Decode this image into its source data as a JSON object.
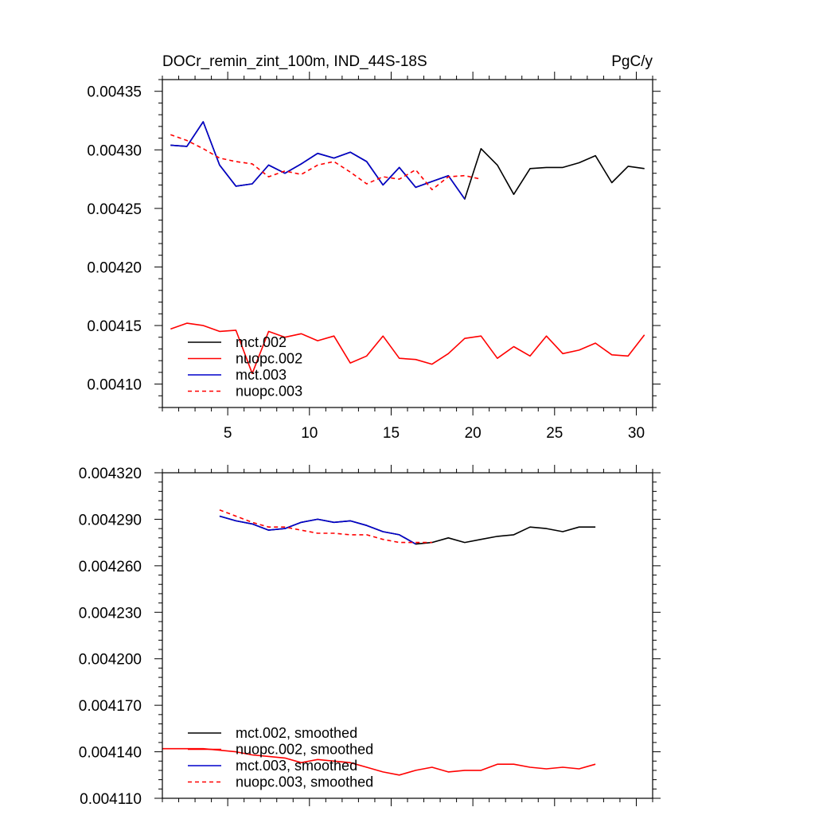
{
  "chart_data": [
    {
      "type": "line",
      "title": "DOCr_remin_zint_100m, IND_44S-18S",
      "units": "PgC/y",
      "xlim": [
        1,
        31
      ],
      "ylim": [
        0.00408,
        0.00436
      ],
      "x_ticks": [
        5,
        10,
        15,
        20,
        25,
        30
      ],
      "x_tick_labels": [
        "5",
        "10",
        "15",
        "20",
        "25",
        "30"
      ],
      "y_ticks": [
        0.0041,
        0.00415,
        0.0042,
        0.00425,
        0.0043,
        0.00435
      ],
      "y_tick_labels": [
        "0.00410",
        "0.00415",
        "0.00420",
        "0.00425",
        "0.00430",
        "0.00435"
      ],
      "legend_position": "bottom-left",
      "series": [
        {
          "name": "mct.002",
          "color": "#000000",
          "dash": "solid",
          "x": [
            1.5,
            2.5,
            3.5,
            4.5,
            5.5,
            6.5,
            7.5,
            8.5,
            9.5,
            10.5,
            11.5,
            12.5,
            13.5,
            14.5,
            15.5,
            16.5,
            17.5,
            18.5,
            19.5,
            20.5,
            21.5,
            22.5,
            23.5,
            24.5,
            25.5,
            26.5,
            27.5,
            28.5,
            29.5,
            30.5
          ],
          "values": [
            0.004304,
            0.004303,
            0.004324,
            0.004287,
            0.004269,
            0.004271,
            0.004287,
            0.00428,
            0.004288,
            0.004297,
            0.004293,
            0.004298,
            0.00429,
            0.00427,
            0.004285,
            0.004268,
            0.004273,
            0.004278,
            0.004258,
            0.004301,
            0.004287,
            0.004262,
            0.004284,
            0.004285,
            0.004285,
            0.004289,
            0.004295,
            0.004272,
            0.004286,
            0.004284
          ]
        },
        {
          "name": "nuopc.002",
          "color": "#ff0000",
          "dash": "solid",
          "x": [
            1.5,
            2.5,
            3.5,
            4.5,
            5.5,
            6.5,
            7.5,
            8.5,
            9.5,
            10.5,
            11.5,
            12.5,
            13.5,
            14.5,
            15.5,
            16.5,
            17.5,
            18.5,
            19.5,
            20.5,
            21.5,
            22.5,
            23.5,
            24.5,
            25.5,
            26.5,
            27.5,
            28.5,
            29.5,
            30.5
          ],
          "values": [
            0.004147,
            0.004152,
            0.00415,
            0.004145,
            0.004146,
            0.004109,
            0.004145,
            0.00414,
            0.004143,
            0.004137,
            0.004141,
            0.004118,
            0.004124,
            0.004141,
            0.004122,
            0.004121,
            0.004117,
            0.004126,
            0.004139,
            0.004141,
            0.004122,
            0.004132,
            0.004124,
            0.004141,
            0.004126,
            0.004129,
            0.004135,
            0.004125,
            0.004124,
            0.004142
          ]
        },
        {
          "name": "mct.003",
          "color": "#0000cc",
          "dash": "solid",
          "x": [
            1.5,
            2.5,
            3.5,
            4.5,
            5.5,
            6.5,
            7.5,
            8.5,
            9.5,
            10.5,
            11.5,
            12.5,
            13.5,
            14.5,
            15.5,
            16.5,
            17.5,
            18.5,
            19.5
          ],
          "values": [
            0.004304,
            0.004303,
            0.004324,
            0.004287,
            0.004269,
            0.004271,
            0.004287,
            0.00428,
            0.004288,
            0.004297,
            0.004293,
            0.004298,
            0.00429,
            0.00427,
            0.004285,
            0.004268,
            0.004273,
            0.004278,
            0.004258
          ]
        },
        {
          "name": "nuopc.003",
          "color": "#ff0000",
          "dash": "dashed",
          "x": [
            1.5,
            2.5,
            3.5,
            4.5,
            5.5,
            6.5,
            7.5,
            8.5,
            9.5,
            10.5,
            11.5,
            12.5,
            13.5,
            14.5,
            15.5,
            16.5,
            17.5,
            18.5,
            19.5,
            20.5
          ],
          "values": [
            0.004313,
            0.004308,
            0.004301,
            0.004293,
            0.00429,
            0.004288,
            0.004277,
            0.004282,
            0.004279,
            0.004287,
            0.00429,
            0.004281,
            0.004271,
            0.004277,
            0.004275,
            0.004283,
            0.004266,
            0.004277,
            0.004278,
            0.004275
          ]
        }
      ]
    },
    {
      "type": "line",
      "title": "",
      "xlim": [
        1,
        31
      ],
      "ylim": [
        0.00411,
        0.00432
      ],
      "x_ticks": [
        5,
        10,
        15,
        20,
        25,
        30
      ],
      "x_tick_labels": [],
      "y_ticks": [
        0.00411,
        0.00414,
        0.00417,
        0.0042,
        0.00423,
        0.00426,
        0.00429,
        0.00432
      ],
      "y_tick_labels": [
        "0.004110",
        "0.004140",
        "0.004170",
        "0.004200",
        "0.004230",
        "0.004260",
        "0.004290",
        "0.004320"
      ],
      "legend_position": "bottom-left",
      "series": [
        {
          "name": "mct.002, smoothed",
          "color": "#000000",
          "dash": "solid",
          "x": [
            4.5,
            5.5,
            6.5,
            7.5,
            8.5,
            9.5,
            10.5,
            11.5,
            12.5,
            13.5,
            14.5,
            15.5,
            16.5,
            17.5,
            18.5,
            19.5,
            20.5,
            21.5,
            22.5,
            23.5,
            24.5,
            25.5,
            26.5,
            27.5
          ],
          "values": [
            0.004292,
            0.004289,
            0.004287,
            0.004283,
            0.004284,
            0.004288,
            0.00429,
            0.004288,
            0.004289,
            0.004286,
            0.004282,
            0.00428,
            0.004274,
            0.004275,
            0.004278,
            0.004275,
            0.004277,
            0.004279,
            0.00428,
            0.004285,
            0.004284,
            0.004282,
            0.004285,
            0.004285
          ]
        },
        {
          "name": "nuopc.002, smoothed",
          "color": "#ff0000",
          "dash": "solid",
          "x": [
            1.0,
            2.5,
            3.5,
            4.5,
            5.5,
            6.5,
            7.5,
            8.5,
            9.5,
            10.5,
            11.5,
            12.5,
            13.5,
            14.5,
            15.5,
            16.5,
            17.5,
            18.5,
            19.5,
            20.5,
            21.5,
            22.5,
            23.5,
            24.5,
            25.5,
            26.5,
            27.5
          ],
          "values": [
            0.004142,
            0.004142,
            0.004142,
            0.004141,
            0.00414,
            0.004138,
            0.004137,
            0.004136,
            0.004133,
            0.004135,
            0.004134,
            0.004133,
            0.00413,
            0.004127,
            0.004125,
            0.004128,
            0.00413,
            0.004127,
            0.004128,
            0.004128,
            0.004132,
            0.004132,
            0.00413,
            0.004129,
            0.00413,
            0.004129,
            0.004132
          ]
        },
        {
          "name": "mct.003, smoothed",
          "color": "#0000cc",
          "dash": "solid",
          "x": [
            4.5,
            5.5,
            6.5,
            7.5,
            8.5,
            9.5,
            10.5,
            11.5,
            12.5,
            13.5,
            14.5,
            15.5,
            16.5
          ],
          "values": [
            0.004292,
            0.004289,
            0.004287,
            0.004283,
            0.004284,
            0.004288,
            0.00429,
            0.004288,
            0.004289,
            0.004286,
            0.004282,
            0.00428,
            0.004274
          ]
        },
        {
          "name": "nuopc.003, smoothed",
          "color": "#ff0000",
          "dash": "dashed",
          "x": [
            4.5,
            5.5,
            6.5,
            7.5,
            8.5,
            9.5,
            10.5,
            11.5,
            12.5,
            13.5,
            14.5,
            15.5,
            16.5,
            17.5
          ],
          "values": [
            0.004296,
            0.004292,
            0.004288,
            0.004285,
            0.004285,
            0.004283,
            0.004281,
            0.004281,
            0.00428,
            0.00428,
            0.004277,
            0.004275,
            0.004275,
            0.004275
          ]
        }
      ]
    }
  ]
}
